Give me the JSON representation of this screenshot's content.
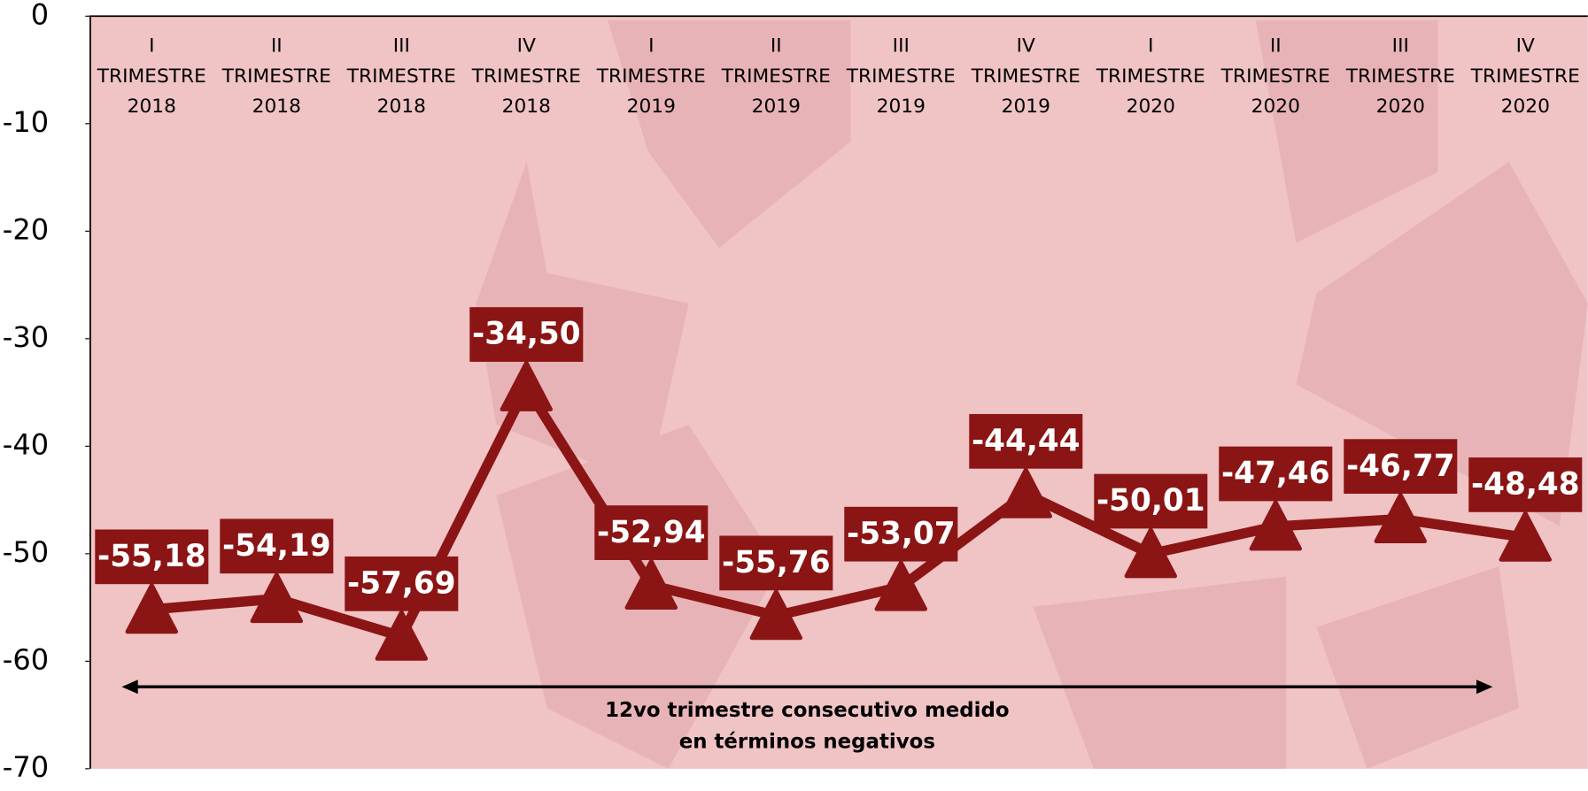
{
  "chart_data": {
    "type": "line",
    "categories": [
      "I TRIMESTRE 2018",
      "II TRIMESTRE 2018",
      "III TRIMESTRE 2018",
      "IV TRIMESTRE 2018",
      "I TRIMESTRE 2019",
      "II TRIMESTRE 2019",
      "III TRIMESTRE 2019",
      "IV TRIMESTRE 2019",
      "I TRIMESTRE 2020",
      "II TRIMESTRE 2020",
      "III TRIMESTRE 2020",
      "IV TRIMESTRE 2020"
    ],
    "values": [
      -55.18,
      -54.19,
      -57.69,
      -34.5,
      -52.94,
      -55.76,
      -53.07,
      -44.44,
      -50.01,
      -47.46,
      -46.77,
      -48.48
    ],
    "value_labels": [
      "-55,18",
      "-54,19",
      "-57,69",
      "-34,50",
      "-52,94",
      "-55,76",
      "-53,07",
      "-44,44",
      "-50,01",
      "-47,46",
      "-46,77",
      "-48,48"
    ],
    "color": "#8b1414",
    "ylim": [
      -70,
      0
    ],
    "yticks": [
      0,
      -10,
      -20,
      -30,
      -40,
      -50,
      -60,
      -70
    ],
    "annotation": [
      "12vo trimestre consecutivo medido",
      "en términos negativos"
    ]
  }
}
